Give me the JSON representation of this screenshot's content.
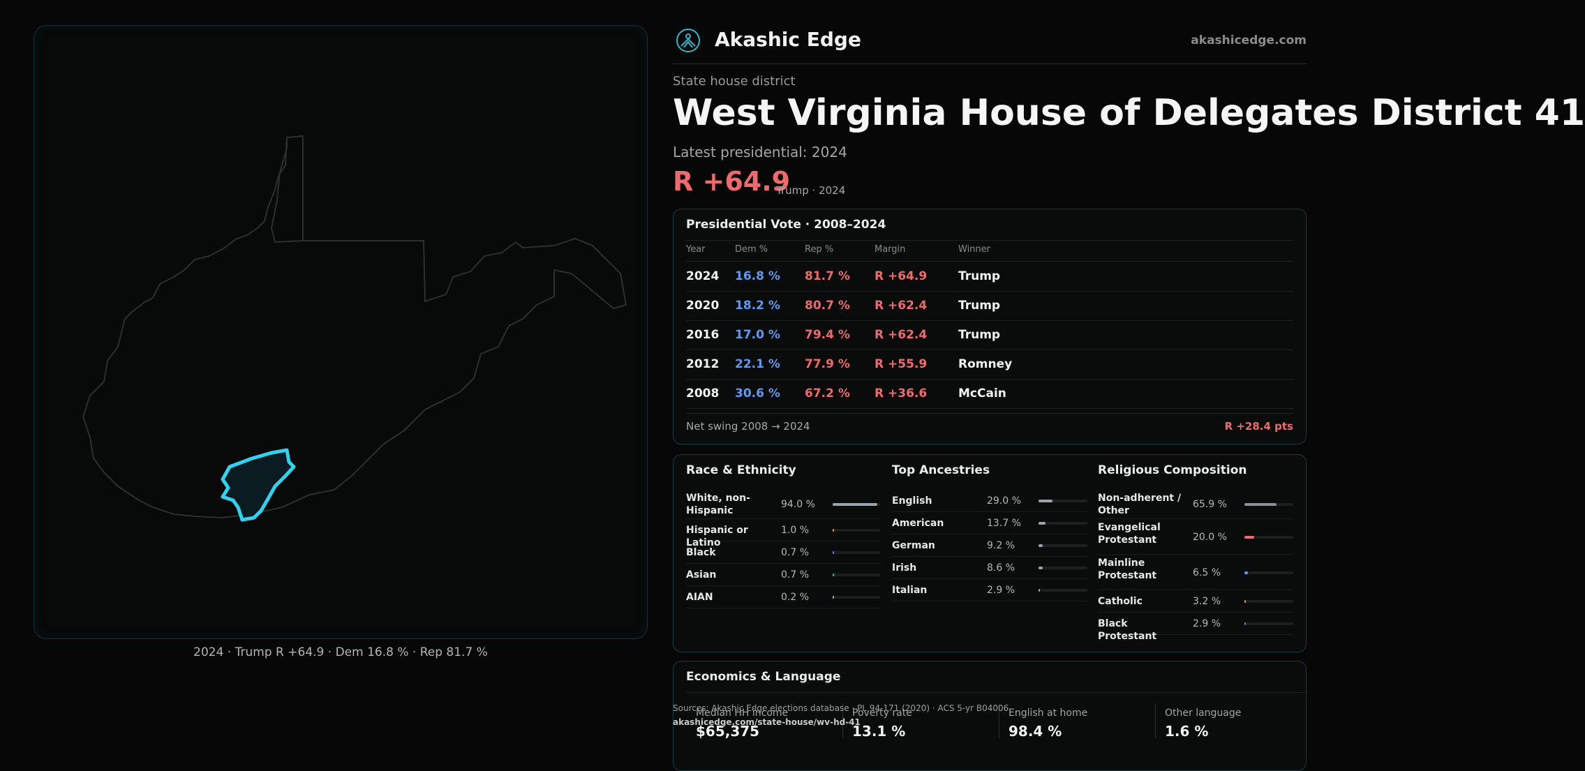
{
  "map": {
    "caption": "2024 · Trump R +64.9 · Dem 16.8 % · Rep 81.7 %",
    "outline_color": "#2c2f30",
    "district_color": "#2fd3f0"
  },
  "brand": {
    "name": "Akashic Edge",
    "url": "akashicedge.com",
    "logo_icon": "akashic-logo-icon"
  },
  "header": {
    "kicker": "State house district",
    "title": "West Virginia House of Delegates District 41",
    "latest": "Latest presidential: 2024",
    "margin": "R +64.9",
    "margin_note": "Trump · 2024"
  },
  "presidential": {
    "title": "Presidential Vote · 2008–2024",
    "headers": {
      "year": "Year",
      "dem": "Dem %",
      "rep": "Rep %",
      "margin": "Margin",
      "winner": "Winner"
    },
    "rows": [
      {
        "year": "2024",
        "dem": "16.8 %",
        "rep": "81.7 %",
        "margin": "R +64.9",
        "winner": "Trump"
      },
      {
        "year": "2020",
        "dem": "18.2 %",
        "rep": "80.7 %",
        "margin": "R +62.4",
        "winner": "Trump"
      },
      {
        "year": "2016",
        "dem": "17.0 %",
        "rep": "79.4 %",
        "margin": "R +62.4",
        "winner": "Trump"
      },
      {
        "year": "2012",
        "dem": "22.1 %",
        "rep": "77.9 %",
        "margin": "R +55.9",
        "winner": "Romney"
      },
      {
        "year": "2008",
        "dem": "30.6 %",
        "rep": "67.2 %",
        "margin": "R +36.6",
        "winner": "McCain"
      }
    ],
    "swing_label": "Net swing 2008 → 2024",
    "swing_value": "R +28.4 pts"
  },
  "race": {
    "title": "Race & Ethnicity",
    "items": [
      {
        "label": "White, non-Hispanic",
        "value": "94.0 %",
        "pct": 94.0,
        "color": "#9aa4ad"
      },
      {
        "label": "Hispanic or Latino",
        "value": "1.0 %",
        "pct": 1.0,
        "color": "#e0a040"
      },
      {
        "label": "Black",
        "value": "0.7 %",
        "pct": 0.7,
        "color": "#8a6ce0"
      },
      {
        "label": "Asian",
        "value": "0.7 %",
        "pct": 0.7,
        "color": "#3cc0a0"
      },
      {
        "label": "AIAN",
        "value": "0.2 %",
        "pct": 0.2,
        "color": "#c0b070"
      }
    ]
  },
  "ancestry": {
    "title": "Top Ancestries",
    "items": [
      {
        "label": "English",
        "value": "29.0 %",
        "pct": 29.0,
        "color": "#9aa4ad"
      },
      {
        "label": "American",
        "value": "13.7 %",
        "pct": 13.7,
        "color": "#9aa4ad"
      },
      {
        "label": "German",
        "value": "9.2 %",
        "pct": 9.2,
        "color": "#9aa4ad"
      },
      {
        "label": "Irish",
        "value": "8.6 %",
        "pct": 8.6,
        "color": "#9aa4ad"
      },
      {
        "label": "Italian",
        "value": "2.9 %",
        "pct": 2.9,
        "color": "#9aa4ad"
      }
    ]
  },
  "religion": {
    "title": "Religious Composition",
    "items": [
      {
        "label": "Non-adherent / Other",
        "value": "65.9 %",
        "pct": 65.9,
        "color": "#8a9096"
      },
      {
        "label": "Evangelical Protestant",
        "value": "20.0 %",
        "pct": 20.0,
        "color": "#ee6b6b"
      },
      {
        "label": "Mainline Protestant",
        "value": "6.5 %",
        "pct": 6.5,
        "color": "#5c9bf0"
      },
      {
        "label": "Catholic",
        "value": "3.2 %",
        "pct": 3.2,
        "color": "#e0a040"
      },
      {
        "label": "Black Protestant",
        "value": "2.9 %",
        "pct": 2.9,
        "color": "#8a6ce0"
      }
    ]
  },
  "economics": {
    "title": "Economics & Language",
    "cells": [
      {
        "label": "Median HH income",
        "value": "$65,375"
      },
      {
        "label": "Poverty rate",
        "value": "13.1 %"
      },
      {
        "label": "English at home",
        "value": "98.4 %"
      },
      {
        "label": "Other language",
        "value": "1.6 %"
      }
    ]
  },
  "source": {
    "line": "Sources: Akashic Edge elections database · PL 94-171 (2020) · ACS 5-yr B04006",
    "url": "akashicedge.com/state-house/wv-hd-41"
  }
}
